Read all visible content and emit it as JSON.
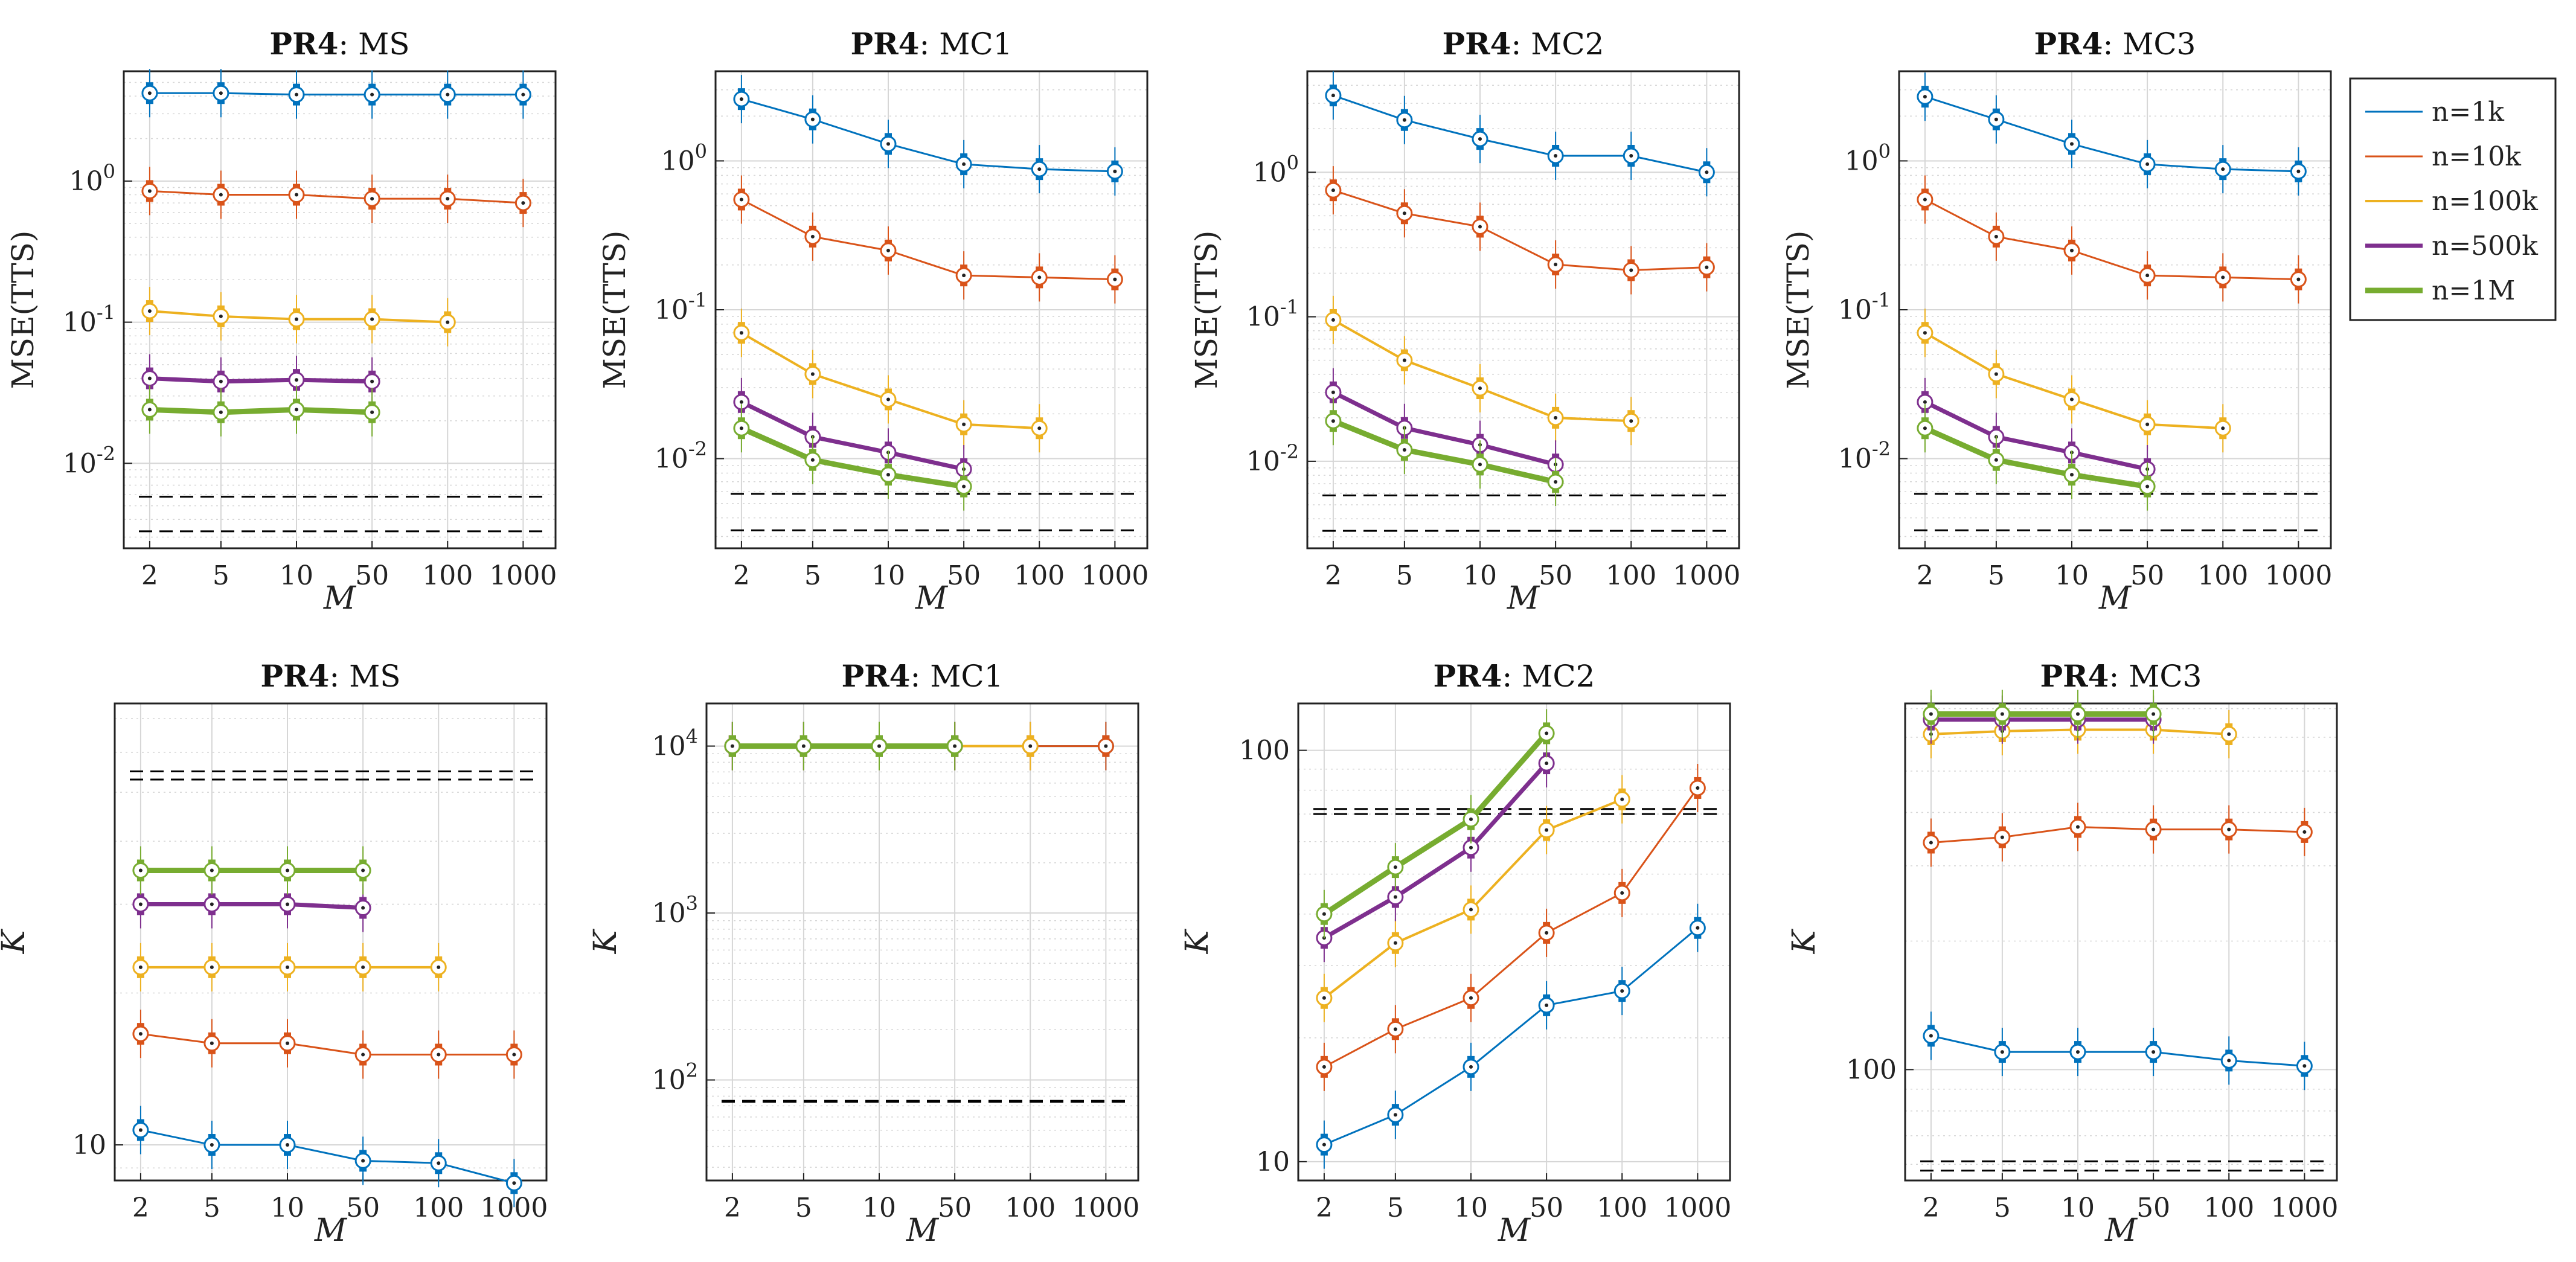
{
  "figure_labels": {
    "x_axis_label": "M",
    "legend_entries": [
      "n=1k",
      "n=10k",
      "n=100k",
      "n=500k",
      "n=1M"
    ]
  },
  "colors": {
    "n=1k": "#0072BD",
    "n=10k": "#D95319",
    "n=100k": "#EDB120",
    "n=500k": "#7E2F8E",
    "n=1M": "#77AC30",
    "reference": "#000000",
    "grid": "#d6d6d6"
  },
  "chart_data": [
    {
      "type": "line",
      "title_bold": "PR4",
      "title_rest": ": MS",
      "ylabel": "MSE(TTS)",
      "xlabel": "M",
      "x_ticks": [
        "2",
        "5",
        "10",
        "50",
        "100",
        "1000"
      ],
      "yscale": "log",
      "ylim": [
        0.0025,
        6
      ],
      "y_ticks": [
        {
          "v": 0.01,
          "label": "10^-2"
        },
        {
          "v": 0.1,
          "label": "10^-1"
        },
        {
          "v": 1,
          "label": "10^0"
        }
      ],
      "series": [
        {
          "name": "n=1k",
          "values": [
            4.2,
            4.2,
            4.1,
            4.1,
            4.1,
            4.1
          ]
        },
        {
          "name": "n=10k",
          "values": [
            0.85,
            0.8,
            0.8,
            0.75,
            0.75,
            0.7
          ]
        },
        {
          "name": "n=100k",
          "values": [
            0.12,
            0.11,
            0.105,
            0.105,
            0.1,
            null
          ]
        },
        {
          "name": "n=500k",
          "values": [
            0.04,
            0.038,
            0.039,
            0.038,
            null,
            null
          ]
        },
        {
          "name": "n=1M",
          "values": [
            0.024,
            0.023,
            0.024,
            0.023,
            null,
            null
          ]
        }
      ],
      "reference_lines": [
        0.0058,
        0.0033
      ]
    },
    {
      "type": "line",
      "title_bold": "PR4",
      "title_rest": ": MC1",
      "ylabel": "MSE(TTS)",
      "xlabel": "M",
      "x_ticks": [
        "2",
        "5",
        "10",
        "50",
        "100",
        "1000"
      ],
      "yscale": "log",
      "ylim": [
        0.0025,
        4
      ],
      "y_ticks": [
        {
          "v": 0.01,
          "label": "10^-2"
        },
        {
          "v": 0.1,
          "label": "10^-1"
        },
        {
          "v": 1,
          "label": "10^0"
        }
      ],
      "series": [
        {
          "name": "n=1k",
          "values": [
            2.6,
            1.9,
            1.3,
            0.95,
            0.88,
            0.85
          ]
        },
        {
          "name": "n=10k",
          "values": [
            0.55,
            0.31,
            0.25,
            0.17,
            0.165,
            0.16
          ]
        },
        {
          "name": "n=100k",
          "values": [
            0.07,
            0.037,
            0.025,
            0.017,
            0.016,
            null
          ]
        },
        {
          "name": "n=500k",
          "values": [
            0.024,
            0.014,
            0.011,
            0.0085,
            null,
            null
          ]
        },
        {
          "name": "n=1M",
          "values": [
            0.016,
            0.0098,
            0.0078,
            0.0065,
            null,
            null
          ]
        }
      ],
      "reference_lines": [
        0.0058,
        0.0033
      ]
    },
    {
      "type": "line",
      "title_bold": "PR4",
      "title_rest": ": MC2",
      "ylabel": "MSE(TTS)",
      "xlabel": "M",
      "x_ticks": [
        "2",
        "5",
        "10",
        "50",
        "100",
        "1000"
      ],
      "yscale": "log",
      "ylim": [
        0.0025,
        5
      ],
      "y_ticks": [
        {
          "v": 0.01,
          "label": "10^-2"
        },
        {
          "v": 0.1,
          "label": "10^-1"
        },
        {
          "v": 1,
          "label": "10^0"
        }
      ],
      "series": [
        {
          "name": "n=1k",
          "values": [
            3.4,
            2.3,
            1.7,
            1.3,
            1.3,
            1.0
          ]
        },
        {
          "name": "n=10k",
          "values": [
            0.75,
            0.52,
            0.42,
            0.23,
            0.21,
            0.22
          ]
        },
        {
          "name": "n=100k",
          "values": [
            0.095,
            0.05,
            0.032,
            0.02,
            0.019,
            null
          ]
        },
        {
          "name": "n=500k",
          "values": [
            0.03,
            0.017,
            0.013,
            0.0095,
            null,
            null
          ]
        },
        {
          "name": "n=1M",
          "values": [
            0.019,
            0.012,
            0.0095,
            0.0072,
            null,
            null
          ]
        }
      ],
      "reference_lines": [
        0.0058,
        0.0033
      ]
    },
    {
      "type": "line",
      "title_bold": "PR4",
      "title_rest": ": MC3",
      "ylabel": "MSE(TTS)",
      "xlabel": "M",
      "x_ticks": [
        "2",
        "5",
        "10",
        "50",
        "100",
        "1000"
      ],
      "yscale": "log",
      "ylim": [
        0.0025,
        4
      ],
      "y_ticks": [
        {
          "v": 0.01,
          "label": "10^-2"
        },
        {
          "v": 0.1,
          "label": "10^-1"
        },
        {
          "v": 1,
          "label": "10^0"
        }
      ],
      "series": [
        {
          "name": "n=1k",
          "values": [
            2.7,
            1.9,
            1.3,
            0.95,
            0.88,
            0.85
          ]
        },
        {
          "name": "n=10k",
          "values": [
            0.55,
            0.31,
            0.25,
            0.17,
            0.165,
            0.16
          ]
        },
        {
          "name": "n=100k",
          "values": [
            0.07,
            0.037,
            0.025,
            0.017,
            0.016,
            null
          ]
        },
        {
          "name": "n=500k",
          "values": [
            0.024,
            0.014,
            0.011,
            0.0085,
            null,
            null
          ]
        },
        {
          "name": "n=1M",
          "values": [
            0.016,
            0.0098,
            0.0078,
            0.0065,
            null,
            null
          ]
        }
      ],
      "reference_lines": [
        0.0058,
        0.0033
      ]
    },
    {
      "type": "line",
      "title_bold": "PR4",
      "title_rest": ": MS",
      "ylabel": "K",
      "xlabel": "M",
      "x_ticks": [
        "2",
        "5",
        "10",
        "50",
        "100",
        "1000"
      ],
      "yscale": "log",
      "ylim": [
        8.5,
        75
      ],
      "y_ticks": [
        {
          "v": 10,
          "label": "10"
        }
      ],
      "series": [
        {
          "name": "n=1k",
          "values": [
            10.7,
            10,
            10,
            9.3,
            9.2,
            8.4
          ]
        },
        {
          "name": "n=10k",
          "values": [
            16.6,
            15.9,
            15.9,
            15.1,
            15.1,
            15.1
          ]
        },
        {
          "name": "n=100k",
          "values": [
            22.5,
            22.5,
            22.5,
            22.5,
            22.5,
            null
          ]
        },
        {
          "name": "n=500k",
          "values": [
            30,
            30,
            30,
            29.5,
            null,
            null
          ]
        },
        {
          "name": "n=1M",
          "values": [
            35,
            35,
            35,
            35,
            null,
            null
          ]
        }
      ],
      "reference_lines": [
        55,
        53
      ]
    },
    {
      "type": "line",
      "title_bold": "PR4",
      "title_rest": ": MC1",
      "ylabel": "K",
      "xlabel": "M",
      "x_ticks": [
        "2",
        "5",
        "10",
        "50",
        "100",
        "1000"
      ],
      "yscale": "log",
      "ylim": [
        25,
        18000
      ],
      "y_ticks": [
        {
          "v": 100,
          "label": "10^2"
        },
        {
          "v": 1000,
          "label": "10^3"
        },
        {
          "v": 10000,
          "label": "10^4"
        }
      ],
      "series": [
        {
          "name": "n=1k",
          "values": [
            10000,
            10000,
            10000,
            10000,
            10000,
            10000
          ]
        },
        {
          "name": "n=10k",
          "values": [
            10000,
            10000,
            10000,
            10000,
            10000,
            10000
          ]
        },
        {
          "name": "n=100k",
          "values": [
            10000,
            10000,
            10000,
            10000,
            10000,
            null
          ]
        },
        {
          "name": "n=500k",
          "values": [
            10000,
            10000,
            10000,
            10000,
            null,
            null
          ]
        },
        {
          "name": "n=1M",
          "values": [
            10000,
            10000,
            10000,
            10000,
            null,
            null
          ]
        }
      ],
      "reference_lines": [
        75,
        74
      ]
    },
    {
      "type": "line",
      "title_bold": "PR4",
      "title_rest": ": MC2",
      "ylabel": "K",
      "xlabel": "M",
      "x_ticks": [
        "2",
        "5",
        "10",
        "50",
        "100",
        "1000"
      ],
      "yscale": "log",
      "ylim": [
        9,
        130
      ],
      "y_ticks": [
        {
          "v": 10,
          "label": "10"
        },
        {
          "v": 100,
          "label": "100"
        }
      ],
      "series": [
        {
          "name": "n=1k",
          "values": [
            11,
            13,
            17,
            24,
            26,
            37
          ]
        },
        {
          "name": "n=10k",
          "values": [
            17,
            21,
            25,
            36,
            45,
            81
          ]
        },
        {
          "name": "n=100k",
          "values": [
            25,
            34,
            41,
            64,
            76,
            null
          ]
        },
        {
          "name": "n=500k",
          "values": [
            35,
            44,
            58,
            93,
            null,
            null
          ]
        },
        {
          "name": "n=1M",
          "values": [
            40,
            52,
            68,
            110,
            null,
            null
          ]
        }
      ],
      "reference_lines": [
        72,
        70
      ]
    },
    {
      "type": "line",
      "title_bold": "PR4",
      "title_rest": ": MC3",
      "ylabel": "K",
      "xlabel": "M",
      "x_ticks": [
        "2",
        "5",
        "10",
        "50",
        "100",
        "1000"
      ],
      "yscale": "log",
      "ylim": [
        55,
        720
      ],
      "y_ticks": [
        {
          "v": 100,
          "label": "100"
        }
      ],
      "series": [
        {
          "name": "n=1k",
          "values": [
            120,
            110,
            110,
            110,
            105,
            102
          ]
        },
        {
          "name": "n=10k",
          "values": [
            340,
            350,
            370,
            365,
            365,
            360
          ]
        },
        {
          "name": "n=100k",
          "values": [
            610,
            620,
            625,
            625,
            610,
            null
          ]
        },
        {
          "name": "n=500k",
          "values": [
            660,
            660,
            660,
            660,
            null,
            null
          ]
        },
        {
          "name": "n=1M",
          "values": [
            680,
            680,
            680,
            680,
            null,
            null
          ]
        }
      ],
      "reference_lines": [
        61,
        58
      ]
    }
  ]
}
